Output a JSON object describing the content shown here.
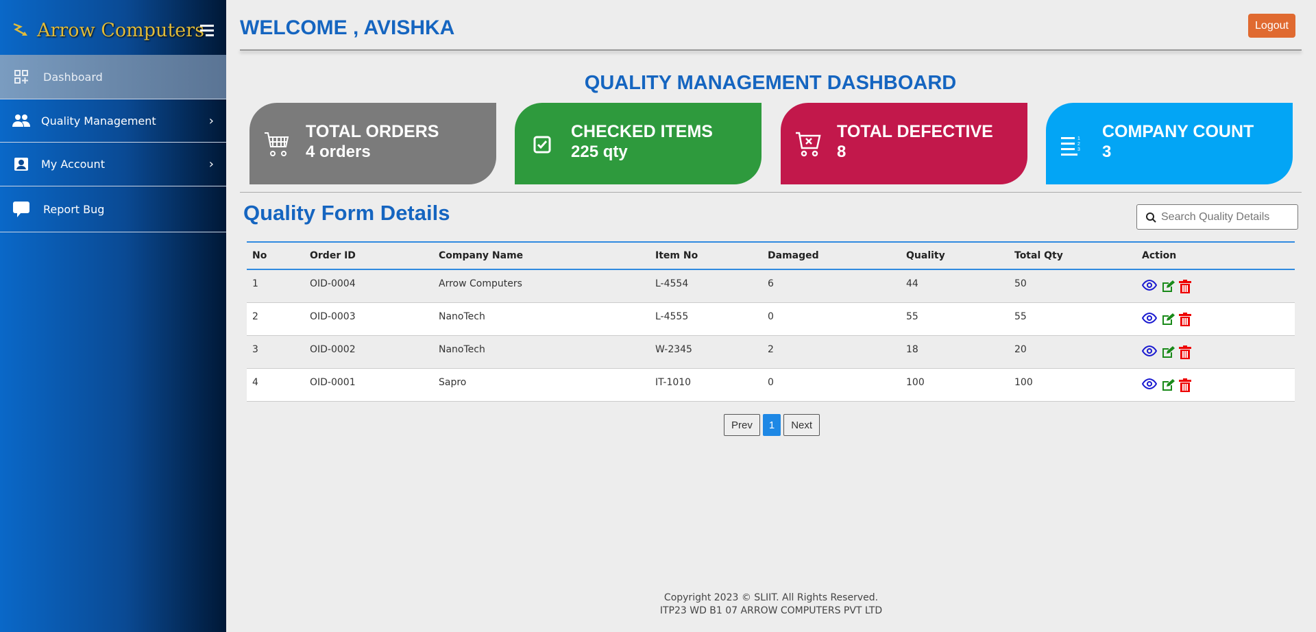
{
  "sidebar": {
    "brand": "Arrow Computers",
    "items": [
      {
        "label": "Dashboard",
        "icon": "dashboard-icon",
        "active": true
      },
      {
        "label": "Quality Management",
        "icon": "users-icon",
        "chevron": true
      },
      {
        "label": "My Account",
        "icon": "account-icon",
        "chevron": true
      },
      {
        "label": "Report Bug",
        "icon": "chat-icon"
      }
    ]
  },
  "header": {
    "welcome": "WELCOME , AVISHKA",
    "logout": "Logout"
  },
  "dashboard_title": "QUALITY MANAGEMENT DASHBOARD",
  "cards": [
    {
      "title": "TOTAL ORDERS",
      "value": "4 orders",
      "color": "#7b7b7b",
      "icon": "cart-icon"
    },
    {
      "title": "CHECKED ITEMS",
      "value": "225 qty",
      "color": "#2e9a3d",
      "icon": "checkbox-icon"
    },
    {
      "title": "TOTAL DEFECTIVE",
      "value": "8",
      "color": "#c2184b",
      "icon": "cart-x-icon"
    },
    {
      "title": "COMPANY COUNT",
      "value": "3",
      "color": "#03a5f5",
      "icon": "numbered-list-icon"
    }
  ],
  "form": {
    "title": "Quality Form Details",
    "search_placeholder": "Search Quality Details"
  },
  "table": {
    "headers": [
      "No",
      "Order ID",
      "Company Name",
      "Item No",
      "Damaged",
      "Quality",
      "Total Qty",
      "Action"
    ],
    "rows": [
      [
        "1",
        "OID-0004",
        "Arrow Computers",
        "L-4554",
        "6",
        "44",
        "50"
      ],
      [
        "2",
        "OID-0003",
        "NanoTech",
        "L-4555",
        "0",
        "55",
        "55"
      ],
      [
        "3",
        "OID-0002",
        "NanoTech",
        "W-2345",
        "2",
        "18",
        "20"
      ],
      [
        "4",
        "OID-0001",
        "Sapro",
        "IT-1010",
        "0",
        "100",
        "100"
      ]
    ]
  },
  "pagination": {
    "prev": "Prev",
    "current": "1",
    "next": "Next"
  },
  "footer": {
    "line1": "Copyright 2023 © SLIIT. All Rights Reserved.",
    "line2": "ITP23 WD B1 07 ARROW COMPUTERS PVT LTD"
  }
}
